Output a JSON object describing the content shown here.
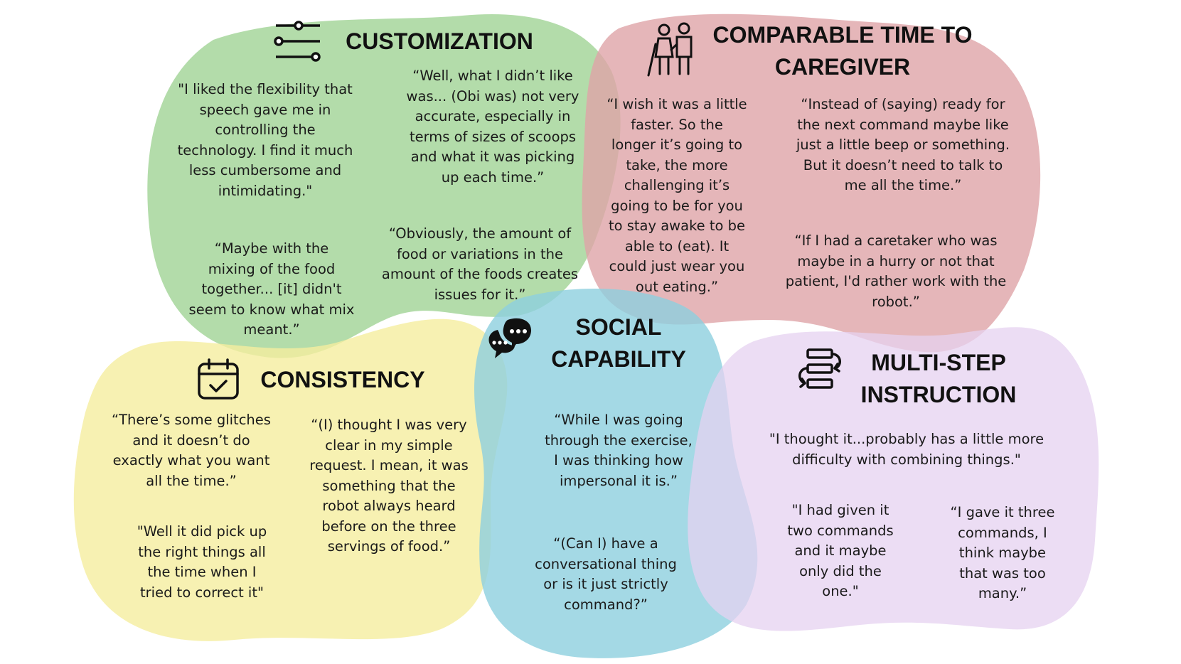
{
  "colors": {
    "customization": "#a6d69b",
    "caregiver": "#dfa4a7",
    "consistency": "#f5ee9f",
    "social": "#8dd0de",
    "multistep": "#e5d2f0"
  },
  "sections": {
    "customization": {
      "title": "CUSTOMIZATION",
      "icon": "sliders-icon",
      "quotes": [
        "\"I liked the flexibility that\nspeech gave me in\ncontrolling the\ntechnology. I find it much\nless cumbersome and\nintimidating.\"",
        "“Well, what I didn’t like\nwas... (Obi was) not very\naccurate, especially in\nterms of sizes of scoops\nand what it was picking\nup each time.”",
        "“Maybe with the\nmixing of the food\ntogether... [it] didn't\nseem to know what mix\nmeant.”",
        "“Obviously, the amount of\nfood or variations in the\namount of the foods creates\nissues for it.”"
      ]
    },
    "caregiver": {
      "title_line1": "COMPARABLE TIME TO",
      "title_line2": "CAREGIVER",
      "icon": "caregiver-elderly-icon",
      "quotes": [
        "“I wish it was a little\nfaster. So the\nlonger it’s going to\ntake, the more\nchallenging it’s\ngoing to be for you\nto stay awake to be\nable to (eat). It\ncould just wear you\nout eating.”",
        "“Instead of (saying) ready for\nthe next command maybe like\njust a little beep or something.\nBut it doesn’t need to talk to\nme all the time.”",
        "“If I had a caretaker who was\nmaybe in a hurry or not that\npatient, I'd rather work with the\nrobot.”"
      ]
    },
    "consistency": {
      "title": "CONSISTENCY",
      "icon": "calendar-check-icon",
      "quotes": [
        "“There’s some glitches\nand it doesn’t do\nexactly what you want\nall the time.”",
        "“(I) thought I was very\nclear in my simple\nrequest. I mean, it was\nsomething that the\nrobot always heard\nbefore on the three\nservings of food.”",
        "\"Well it did pick up\nthe right things all\nthe time when I\ntried to correct it\""
      ]
    },
    "social": {
      "title_line1": "SOCIAL",
      "title_line2": "CAPABILITY",
      "icon": "chat-bubbles-icon",
      "quotes": [
        "“While I was going\nthrough the exercise,\nI was thinking how\nimpersonal it is.”",
        "“(Can I) have a\nconversational thing\nor is it just strictly\ncommand?”"
      ]
    },
    "multistep": {
      "title_line1": "MULTI-STEP",
      "title_line2": "INSTRUCTION",
      "icon": "stacked-steps-icon",
      "quotes": [
        "\"I thought it...probably has a little more\ndifficulty with combining things.\"",
        "\"I had given it\ntwo commands\nand it maybe\nonly did the\none.\"",
        "“I gave it three\ncommands, I\nthink maybe\nthat was too\nmany.”"
      ]
    }
  }
}
